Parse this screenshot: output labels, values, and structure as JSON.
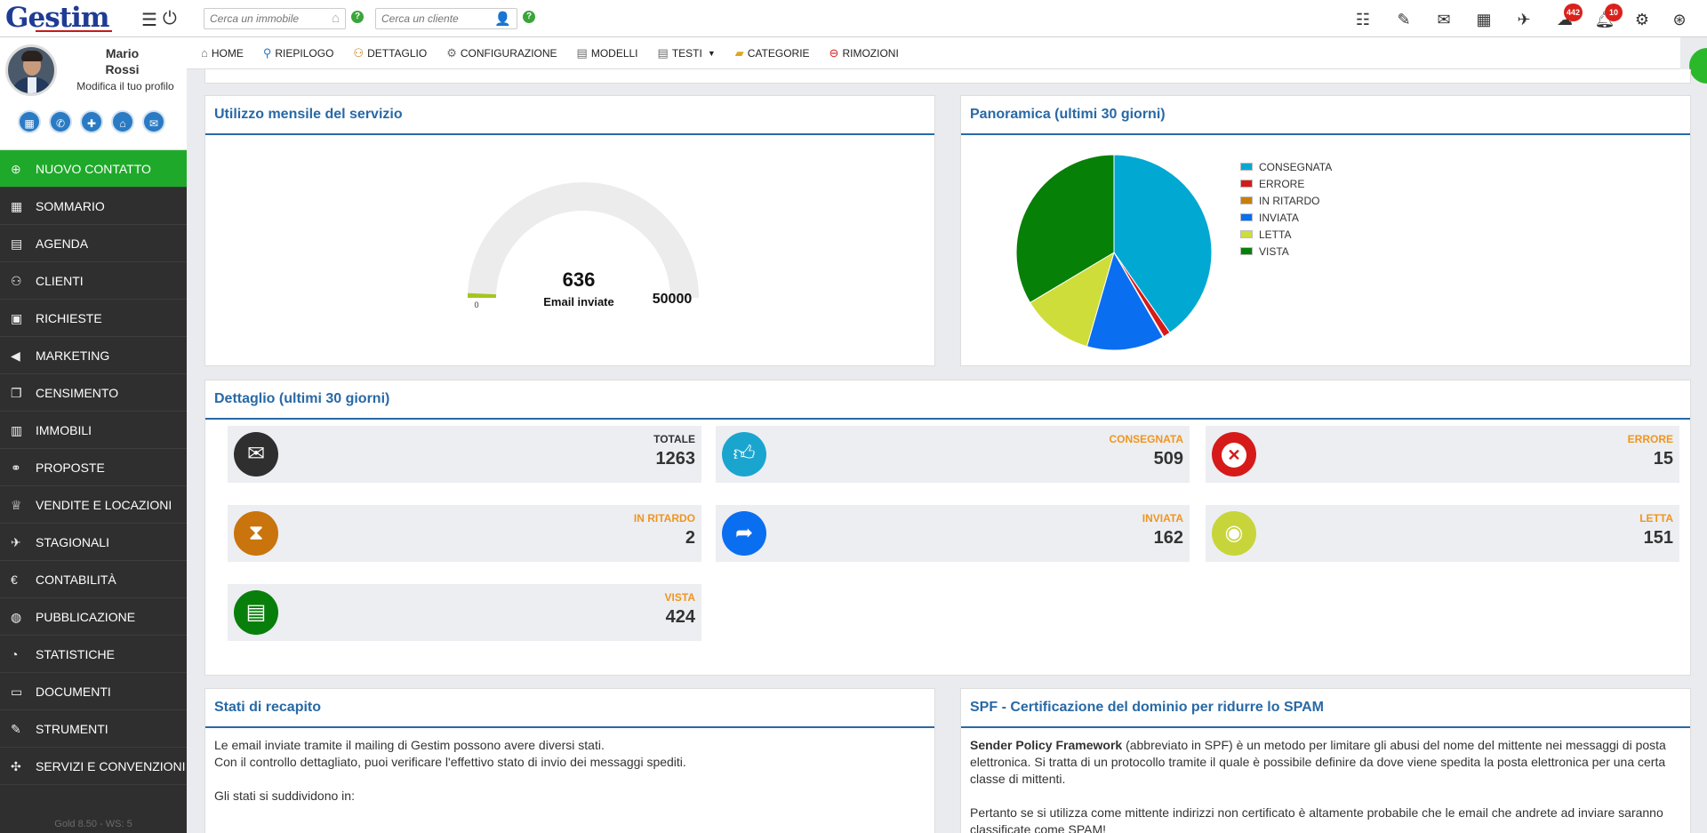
{
  "app": {
    "logo": "Gestim"
  },
  "search": {
    "property_placeholder": "Cerca un immobile",
    "client_placeholder": "Cerca un cliente",
    "help": "?"
  },
  "toolbar": {
    "cloud_badge": "442",
    "bell_badge": "10"
  },
  "profile": {
    "first_name": "Mario",
    "last_name": "Rossi",
    "edit_link": "Modifica il tuo profilo"
  },
  "sidebar": {
    "items": [
      {
        "label": "NUOVO CONTATTO",
        "icon": "plus-circle-icon"
      },
      {
        "label": "SOMMARIO",
        "icon": "dashboard-icon"
      },
      {
        "label": "AGENDA",
        "icon": "calendar-icon"
      },
      {
        "label": "CLIENTI",
        "icon": "users-icon"
      },
      {
        "label": "RICHIESTE",
        "icon": "contact-card-icon"
      },
      {
        "label": "MARKETING",
        "icon": "megaphone-icon"
      },
      {
        "label": "CENSIMENTO",
        "icon": "documents-icon"
      },
      {
        "label": "IMMOBILI",
        "icon": "building-icon"
      },
      {
        "label": "PROPOSTE",
        "icon": "handshake-icon"
      },
      {
        "label": "VENDITE E LOCAZIONI",
        "icon": "trophy-icon"
      },
      {
        "label": "STAGIONALI",
        "icon": "plane-icon"
      },
      {
        "label": "CONTABILITÀ",
        "icon": "euro-icon"
      },
      {
        "label": "PUBBLICAZIONE",
        "icon": "globe-icon"
      },
      {
        "label": "STATISTICHE",
        "icon": "pie-chart-icon"
      },
      {
        "label": "DOCUMENTI",
        "icon": "archive-icon"
      },
      {
        "label": "STRUMENTI",
        "icon": "wrench-icon"
      },
      {
        "label": "SERVIZI E CONVENZIONI",
        "icon": "puzzle-icon"
      }
    ],
    "version": "Gold 8.50 - WS: 5"
  },
  "subnav": {
    "items": [
      {
        "label": "HOME",
        "icon": "home-icon"
      },
      {
        "label": "RIEPILOGO",
        "icon": "search-icon"
      },
      {
        "label": "DETTAGLIO",
        "icon": "users-icon"
      },
      {
        "label": "CONFIGURAZIONE",
        "icon": "gear-icon"
      },
      {
        "label": "MODELLI",
        "icon": "document-icon"
      },
      {
        "label": "TESTI",
        "icon": "document-icon"
      },
      {
        "label": "CATEGORIE",
        "icon": "folder-icon"
      },
      {
        "label": "RIMOZIONI",
        "icon": "remove-icon"
      }
    ]
  },
  "usage": {
    "title": "Utilizzo mensile del servizio",
    "value": 636,
    "value_text": "636",
    "caption": "Email inviate",
    "min": "0",
    "max": "50000",
    "max_value": 50000,
    "colors": {
      "fill": "#a6c41f",
      "track": "#ececec"
    }
  },
  "overview": {
    "title": "Panoramica (ultimi 30 giorni)"
  },
  "chart_data": {
    "type": "pie",
    "title": "Panoramica (ultimi 30 giorni)",
    "legend": "right",
    "slices": [
      {
        "name": "CONSEGNATA",
        "value": 509,
        "color": "#00a8d2"
      },
      {
        "name": "ERRORE",
        "value": 15,
        "color": "#d61a1a"
      },
      {
        "name": "IN RITARDO",
        "value": 2,
        "color": "#c87f0a"
      },
      {
        "name": "INVIATA",
        "value": 162,
        "color": "#0a6ef0"
      },
      {
        "name": "LETTA",
        "value": 151,
        "color": "#cedd3a"
      },
      {
        "name": "VISTA",
        "value": 424,
        "color": "#078007"
      }
    ]
  },
  "detail": {
    "title": "Dettaglio (ultimi 30 giorni)",
    "stats": [
      {
        "label": "TOTALE",
        "value": "1263",
        "icon": "envelope-icon",
        "color": "#2f2f2f"
      },
      {
        "label": "CONSEGNATA",
        "value": "509",
        "icon": "thumbs-up-icon",
        "color": "#1aa5cf"
      },
      {
        "label": "ERRORE",
        "value": "15",
        "icon": "close-icon",
        "color": "#d61a1a"
      },
      {
        "label": "IN RITARDO",
        "value": "2",
        "icon": "hourglass-icon",
        "color": "#c9740c"
      },
      {
        "label": "INVIATA",
        "value": "162",
        "icon": "share-icon",
        "color": "#0a6ef0"
      },
      {
        "label": "LETTA",
        "value": "151",
        "icon": "eye-icon",
        "color": "#c7d53a"
      },
      {
        "label": "VISTA",
        "value": "424",
        "icon": "document-icon",
        "color": "#087f0a"
      }
    ]
  },
  "recapito": {
    "title": "Stati di recapito",
    "line1": "Le email inviate tramite il mailing di Gestim possono avere diversi stati.",
    "line2": "Con il controllo dettagliato, puoi verificare l'effettivo stato di invio dei messaggi spediti.",
    "line3": "Gli stati si suddividono in:"
  },
  "spf": {
    "title": "SPF - Certificazione del dominio per ridurre lo SPAM",
    "bold": "Sender Policy Framework",
    "p1": " (abbreviato in SPF) è un metodo per limitare gli abusi del nome del mittente nei messaggi di posta elettronica. Si tratta di un protocollo tramite il quale è possibile definire da dove viene spedita la posta elettronica per una certa classe di mittenti.",
    "p2": "Pertanto se si utilizza come mittente indirizzi non certificato è altamente probabile che le email che andrete ad inviare saranno classificate come SPAM!"
  }
}
